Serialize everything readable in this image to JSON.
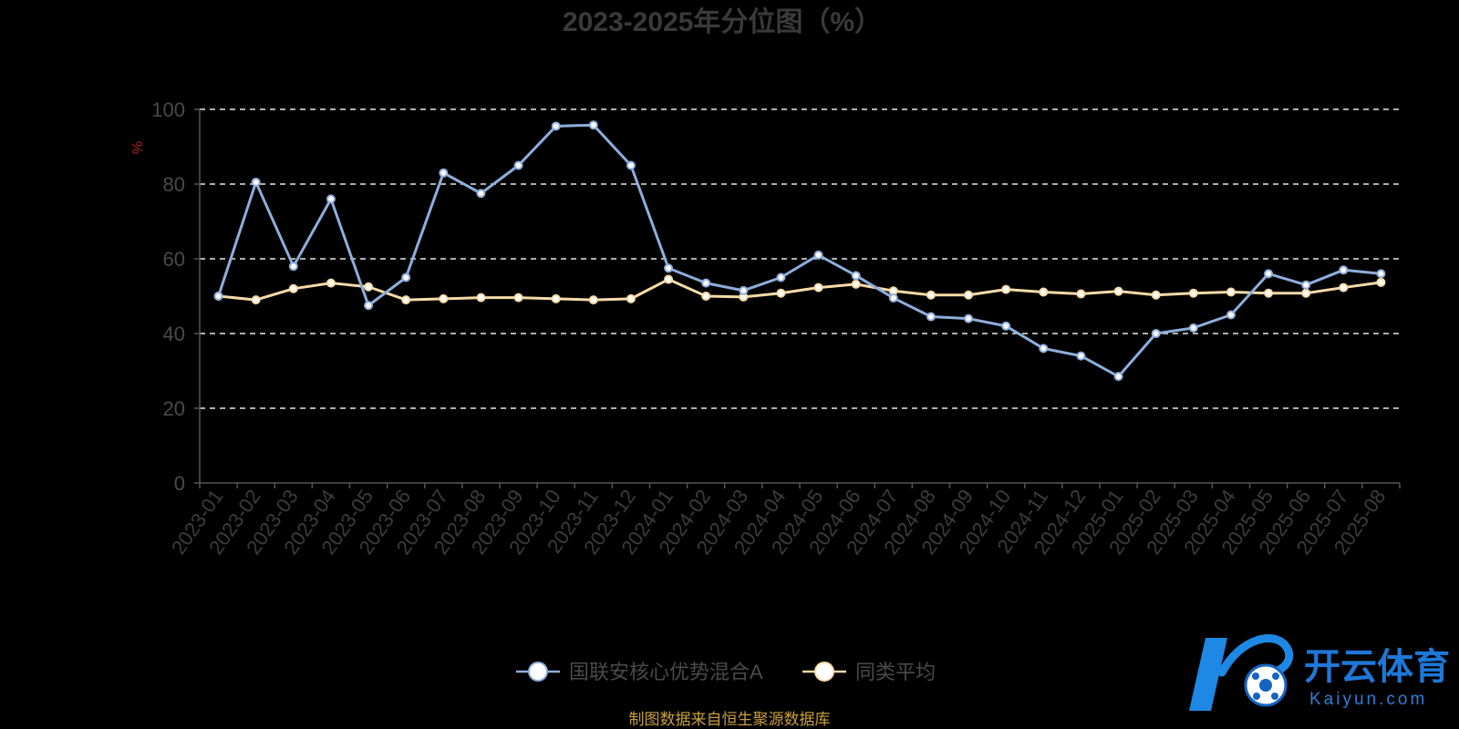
{
  "chart_data": {
    "type": "line",
    "title": "2023-2025年分位图（%）",
    "ylabel": "%",
    "xlabel": "",
    "ylim": [
      0,
      100
    ],
    "yticks": [
      0,
      20,
      40,
      60,
      80,
      100
    ],
    "grid": true,
    "legend_position": "bottom-center",
    "categories": [
      "2023-01",
      "2023-02",
      "2023-03",
      "2023-04",
      "2023-05",
      "2023-06",
      "2023-07",
      "2023-08",
      "2023-09",
      "2023-10",
      "2023-11",
      "2023-12",
      "2024-01",
      "2024-02",
      "2024-03",
      "2024-04",
      "2024-05",
      "2024-06",
      "2024-07",
      "2024-08",
      "2024-09",
      "2024-10",
      "2024-11",
      "2024-12",
      "2025-01",
      "2025-02",
      "2025-03",
      "2025-04",
      "2025-05",
      "2025-06",
      "2025-07",
      "2025-08"
    ],
    "series": [
      {
        "name": "国联安核心优势混合A",
        "color": "#8eaedc",
        "values": [
          50.0,
          80.5,
          58.0,
          76.0,
          47.5,
          55.0,
          83.0,
          77.5,
          85.0,
          95.5,
          95.8,
          85.0,
          57.5,
          53.5,
          51.5,
          55.0,
          61.0,
          55.5,
          49.5,
          44.5,
          44.0,
          42.0,
          36.0,
          34.0,
          28.5,
          40.0,
          41.5,
          45.0,
          56.0,
          53.0,
          57.0,
          56.0
        ]
      },
      {
        "name": "同类平均",
        "color": "#f7dba7",
        "values": [
          50.0,
          49.0,
          52.0,
          53.5,
          52.5,
          49.0,
          49.3,
          49.6,
          49.6,
          49.3,
          49.0,
          49.3,
          54.5,
          50.0,
          49.8,
          50.8,
          52.3,
          53.2,
          51.4,
          50.3,
          50.3,
          51.8,
          51.1,
          50.6,
          51.3,
          50.3,
          50.8,
          51.1,
          50.8,
          50.8,
          52.3,
          53.7
        ]
      }
    ]
  },
  "footer": {
    "source": "制图数据来自恒生聚源数据库"
  },
  "watermark": {
    "name_cn": "开云体育",
    "name_en": "Kaiyun.com"
  }
}
